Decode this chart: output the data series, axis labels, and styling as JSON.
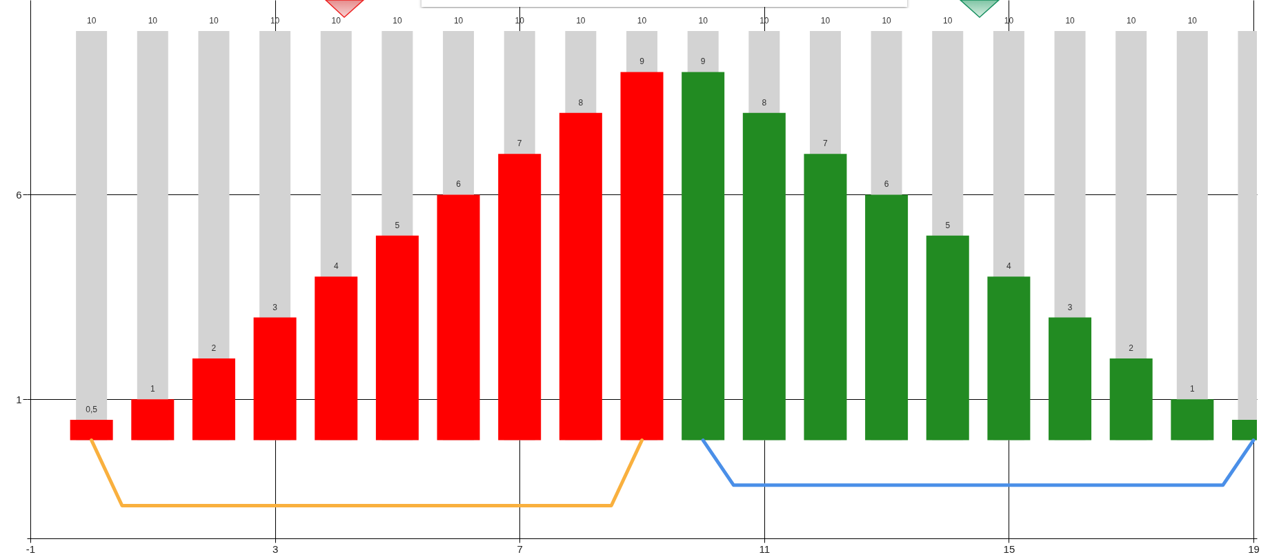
{
  "chart_data": {
    "type": "bar",
    "x": [
      0,
      1,
      2,
      3,
      4,
      5,
      6,
      7,
      8,
      9,
      10,
      11,
      12,
      13,
      14,
      15,
      16,
      17,
      18,
      19
    ],
    "series": [
      {
        "color": "#d3d3d3",
        "values": [
          10,
          10,
          10,
          10,
          10,
          10,
          10,
          10,
          10,
          10,
          10,
          10,
          10,
          10,
          10,
          10,
          10,
          10,
          10,
          10
        ],
        "value_labels": [
          "10",
          "10",
          "10",
          "10",
          "10",
          "10",
          "10",
          "10",
          "10",
          "10",
          "10",
          "10",
          "10",
          "10",
          "10",
          "10",
          "10",
          "10",
          "10",
          null
        ]
      },
      {
        "color": "#ff0000",
        "values": [
          0.5,
          1,
          2,
          3,
          4,
          5,
          6,
          7,
          8,
          9,
          null,
          null,
          null,
          null,
          null,
          null,
          null,
          null,
          null,
          null
        ],
        "value_labels": [
          "0,5",
          "1",
          "2",
          "3",
          "4",
          "5",
          "6",
          "7",
          "8",
          "9",
          null,
          null,
          null,
          null,
          null,
          null,
          null,
          null,
          null,
          null
        ]
      },
      {
        "color": "#228b22",
        "values": [
          null,
          null,
          null,
          null,
          null,
          null,
          null,
          null,
          null,
          null,
          9,
          8,
          7,
          6,
          5,
          4,
          3,
          2,
          1,
          0.5
        ],
        "value_labels": [
          null,
          null,
          null,
          null,
          null,
          null,
          null,
          null,
          null,
          null,
          "9",
          "8",
          "7",
          "6",
          "5",
          "4",
          "3",
          "2",
          "1",
          null
        ]
      },
      {
        "type": "line",
        "color": "#f9b03e",
        "x": [
          0,
          0.5,
          8.5,
          9
        ],
        "values": [
          0,
          -1.6,
          -1.6,
          0
        ]
      },
      {
        "type": "line",
        "color": "#4a8fe8",
        "x": [
          10,
          10.5,
          18.5,
          19
        ],
        "values": [
          0,
          -1.1,
          -1.1,
          0
        ]
      }
    ],
    "xlim": [
      -1,
      19
    ],
    "xticks": [
      -1,
      3,
      7,
      11,
      15,
      19
    ],
    "ylim": [
      -2.4,
      10.76
    ],
    "yticks": [
      1,
      6
    ],
    "grid": true,
    "line_style": "solid",
    "marker": "none"
  }
}
